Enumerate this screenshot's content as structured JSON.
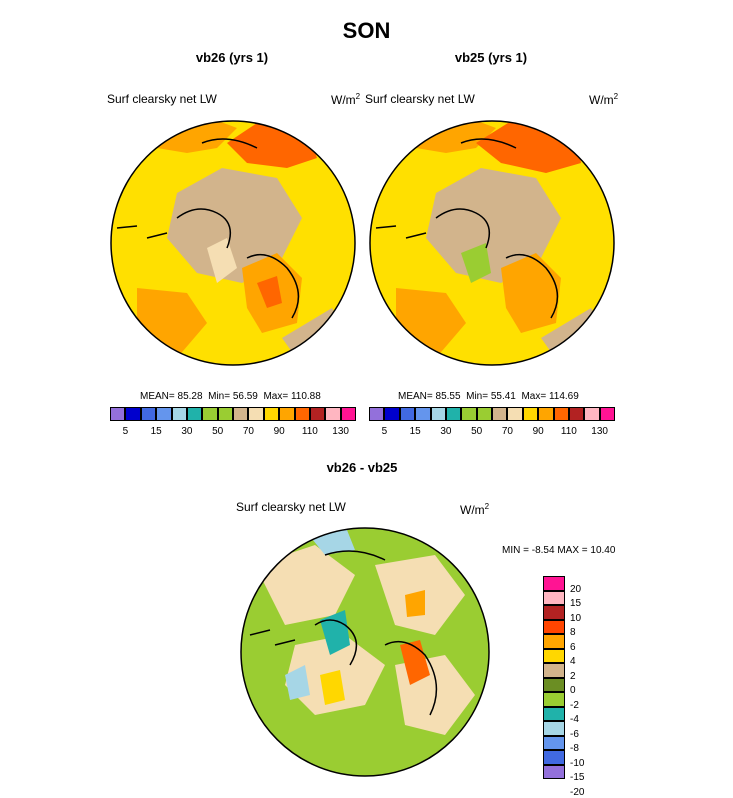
{
  "chart_data": {
    "type": "polar_contour_map",
    "figure_title": "SON",
    "panels": [
      {
        "id": "vb26",
        "title": "vb26 (yrs 1)",
        "variable_label": "Surf clearsky net LW",
        "units": "W/m",
        "units_exp": "2",
        "stats": {
          "mean_label": "MEAN=",
          "mean": "85.28",
          "min_label": "Min=",
          "min": "56.59",
          "max_label": "Max=",
          "max": "110.88"
        },
        "colorbar_tick_labels": [
          "5",
          "15",
          "30",
          "50",
          "70",
          "90",
          "110",
          "130"
        ],
        "colors": [
          "#9370DB",
          "#0000CD",
          "#4169E1",
          "#6495ED",
          "#A6D6E6",
          "#20B2AA",
          "#99CC33",
          "#9ACD32",
          "#D2B48C",
          "#F5DEB3",
          "#FFD700",
          "#FFA500",
          "#FF6600",
          "#B22222",
          "#FFB6C1",
          "#FF1493"
        ]
      },
      {
        "id": "vb25",
        "title": "vb25 (yrs 1)",
        "variable_label": "Surf clearsky net LW",
        "units": "W/m",
        "units_exp": "2",
        "stats": {
          "mean_label": "MEAN=",
          "mean": "85.55",
          "min_label": "Min=",
          "min": "55.41",
          "max_label": "Max=",
          "max": "114.69"
        },
        "colorbar_tick_labels": [
          "5",
          "15",
          "30",
          "50",
          "70",
          "90",
          "110",
          "130"
        ],
        "colors": [
          "#9370DB",
          "#0000CD",
          "#4169E1",
          "#6495ED",
          "#A6D6E6",
          "#20B2AA",
          "#99CC33",
          "#9ACD32",
          "#D2B48C",
          "#F5DEB3",
          "#FFD700",
          "#FFA500",
          "#FF6600",
          "#B22222",
          "#FFB6C1",
          "#FF1493"
        ]
      },
      {
        "id": "diff",
        "title": "vb26 - vb25",
        "variable_label": "Surf clearsky net LW",
        "units": "W/m",
        "units_exp": "2",
        "stats": {
          "min_label": "MIN =",
          "min": "-8.54",
          "max_label": "MAX =",
          "max": "10.40"
        },
        "colorbar_tick_labels": [
          "20",
          "15",
          "10",
          "8",
          "6",
          "4",
          "2",
          "0",
          "-2",
          "-4",
          "-6",
          "-8",
          "-10",
          "-15",
          "-20"
        ],
        "colors": [
          "#FF1493",
          "#FFB6C1",
          "#B22222",
          "#FF4500",
          "#FFA500",
          "#FFD700",
          "#D2B48C",
          "#6B8E23",
          "#9ACD32",
          "#20B2AA",
          "#A6D6E6",
          "#6495ED",
          "#4169E1",
          "#9370DB"
        ]
      }
    ]
  }
}
